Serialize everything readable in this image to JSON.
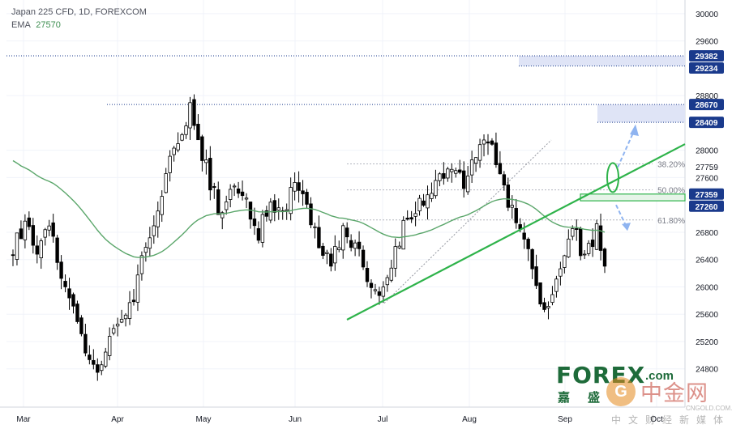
{
  "header": {
    "title": "Japan 225 CFD, 1D, FOREXCOM",
    "indicator_name": "EMA",
    "indicator_value": "27570"
  },
  "colors": {
    "up_candle": "#ffffff",
    "down_candle": "#000000",
    "ema": "#5aa66a",
    "trendline": "#2eb34a",
    "price_label_bg": "#1a3a8c",
    "zone_fill": "#dfe4f6",
    "green_zone_fill": "#e6f4e8",
    "arrow": "#8fb4f0"
  },
  "watermark": {
    "brand": "FOREX",
    "brand_suffix": ".com",
    "brand_cn": "嘉盛",
    "site_name": "中金网",
    "site_url": "CNGOLD.COM.CN",
    "site_sub": "中文财经新媒体"
  },
  "chart_data": {
    "type": "candlestick",
    "title": "Japan 225 CFD, 1D, FOREXCOM",
    "y_ticks": [
      30000,
      29600,
      28800,
      28000,
      27600,
      26800,
      26400,
      26000,
      25600,
      25200,
      24800
    ],
    "ylim": [
      24240,
      30200
    ],
    "x_ticks": [
      "Mar",
      "Apr",
      "May",
      "Jun",
      "Jul",
      "Aug",
      "Sep",
      "Oct"
    ],
    "price_labels": [
      {
        "value": 29382,
        "text": "29382"
      },
      {
        "value": 29234,
        "text": "29234"
      },
      {
        "value": 28670,
        "text": "28670"
      },
      {
        "value": 28409,
        "text": "28409"
      },
      {
        "value": 27359,
        "text": "27359"
      },
      {
        "value": 27260,
        "text": "27260"
      }
    ],
    "plain_labels": [
      {
        "value": 27759,
        "text": "27759"
      }
    ],
    "fibonacci": [
      {
        "level": "38.20%",
        "value": 27800
      },
      {
        "level": "50.00%",
        "value": 27420
      },
      {
        "level": "61.80%",
        "value": 26980
      }
    ],
    "ema_value": 27570,
    "ema_period_note": "",
    "seed": 20210913,
    "candles_count": 148,
    "price_path": [
      [
        0,
        26500
      ],
      [
        3,
        27000
      ],
      [
        6,
        26400
      ],
      [
        9,
        26900
      ],
      [
        12,
        26100
      ],
      [
        15,
        25600
      ],
      [
        18,
        25000
      ],
      [
        21,
        24650
      ],
      [
        24,
        25200
      ],
      [
        27,
        25400
      ],
      [
        30,
        25900
      ],
      [
        33,
        26600
      ],
      [
        36,
        27200
      ],
      [
        39,
        27800
      ],
      [
        42,
        28300
      ],
      [
        44,
        28670
      ],
      [
        46,
        28200
      ],
      [
        49,
        27500
      ],
      [
        52,
        27000
      ],
      [
        55,
        27600
      ],
      [
        58,
        27200
      ],
      [
        61,
        26800
      ],
      [
        64,
        27300
      ],
      [
        67,
        27000
      ],
      [
        70,
        27600
      ],
      [
        73,
        27100
      ],
      [
        76,
        26600
      ],
      [
        79,
        26300
      ],
      [
        82,
        26800
      ],
      [
        85,
        26600
      ],
      [
        88,
        26200
      ],
      [
        91,
        25800
      ],
      [
        94,
        26300
      ],
      [
        97,
        26900
      ],
      [
        100,
        27100
      ],
      [
        103,
        27300
      ],
      [
        106,
        27600
      ],
      [
        109,
        27800
      ],
      [
        112,
        27500
      ],
      [
        115,
        27900
      ],
      [
        118,
        28200
      ],
      [
        121,
        27600
      ],
      [
        124,
        27100
      ],
      [
        127,
        26700
      ],
      [
        130,
        25900
      ],
      [
        133,
        25600
      ],
      [
        136,
        26200
      ],
      [
        139,
        26900
      ],
      [
        142,
        26400
      ],
      [
        145,
        26800
      ],
      [
        148,
        26200
      ],
      [
        151,
        25900
      ]
    ]
  }
}
